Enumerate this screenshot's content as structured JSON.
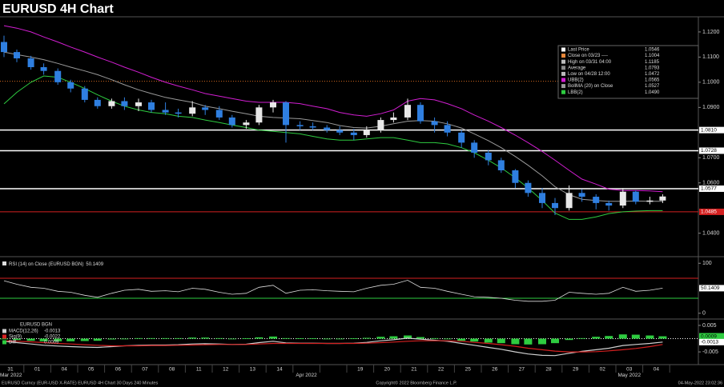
{
  "header": {
    "title": "EURUSD 4H Chart"
  },
  "chart_data": [
    {
      "type": "candlestick",
      "up_color": "#e8e8e8",
      "down_color": "#2f7fe0",
      "open": [
        1.116,
        1.112,
        1.1095,
        1.106,
        1.1045,
        1.1,
        1.0975,
        1.093,
        1.0905,
        1.0925,
        1.0905,
        1.092,
        1.089,
        1.088,
        1.0875,
        1.09,
        1.089,
        1.086,
        1.083,
        1.084,
        1.09,
        1.092,
        1.083,
        1.0825,
        1.082,
        1.081,
        1.08,
        1.079,
        1.081,
        1.085,
        1.086,
        1.091,
        1.0845,
        1.083,
        1.08,
        1.076,
        1.072,
        1.069,
        1.065,
        1.06,
        1.056,
        1.052,
        1.05,
        1.056,
        1.0545,
        1.052,
        1.051,
        1.0565,
        1.0525,
        1.053
      ],
      "high": [
        1.1185,
        1.113,
        1.1105,
        1.1075,
        1.1055,
        1.101,
        1.0985,
        1.094,
        1.0935,
        1.094,
        1.0935,
        1.093,
        1.092,
        1.0895,
        1.0925,
        1.091,
        1.0905,
        1.087,
        1.085,
        1.091,
        1.093,
        1.0925,
        1.0845,
        1.084,
        1.083,
        1.0825,
        1.0815,
        1.0825,
        1.086,
        1.088,
        1.0935,
        1.092,
        1.086,
        1.0845,
        1.081,
        1.077,
        1.073,
        1.07,
        1.0655,
        1.061,
        1.058,
        1.054,
        1.059,
        1.0575,
        1.0555,
        1.053,
        1.058,
        1.057,
        1.0545,
        1.0555
      ],
      "low": [
        1.11,
        1.108,
        1.105,
        1.103,
        1.099,
        1.096,
        1.092,
        1.0895,
        1.0895,
        1.089,
        1.0885,
        1.088,
        1.087,
        1.086,
        1.0865,
        1.087,
        1.085,
        1.082,
        1.0815,
        1.083,
        1.088,
        1.076,
        1.081,
        1.081,
        1.08,
        1.079,
        1.077,
        1.078,
        1.08,
        1.084,
        1.085,
        1.0835,
        1.08,
        1.0785,
        1.074,
        1.07,
        1.067,
        1.064,
        1.058,
        1.0545,
        1.05,
        1.0472,
        1.049,
        1.0525,
        1.0495,
        1.049,
        1.05,
        1.0515,
        1.0515,
        1.052
      ],
      "close": [
        1.112,
        1.1095,
        1.106,
        1.1045,
        1.1,
        1.0975,
        1.093,
        1.0905,
        1.0925,
        1.0905,
        1.092,
        1.089,
        1.088,
        1.0875,
        1.09,
        1.089,
        1.086,
        1.083,
        1.084,
        1.09,
        1.092,
        1.083,
        1.0825,
        1.082,
        1.081,
        1.08,
        1.079,
        1.081,
        1.085,
        1.086,
        1.091,
        1.0845,
        1.083,
        1.08,
        1.076,
        1.072,
        1.069,
        1.065,
        1.06,
        1.056,
        1.052,
        1.05,
        1.056,
        1.0545,
        1.052,
        1.051,
        1.0565,
        1.0525,
        1.053,
        1.0546
      ],
      "series": [
        {
          "color": "#d21ed2",
          "values": [
            1.1225,
            1.1215,
            1.12,
            1.118,
            1.116,
            1.114,
            1.112,
            1.11,
            1.108,
            1.106,
            1.104,
            1.102,
            1.1,
            1.0985,
            1.097,
            1.0955,
            1.0945,
            1.0935,
            1.0925,
            1.092,
            1.092,
            1.092,
            1.0915,
            1.0905,
            1.0895,
            1.088,
            1.087,
            1.0865,
            1.0875,
            1.089,
            1.0925,
            1.0935,
            1.093,
            1.0915,
            1.0895,
            1.087,
            1.0845,
            1.082,
            1.079,
            1.076,
            1.0725,
            1.069,
            1.065,
            1.0615,
            1.0595,
            1.0575,
            1.057,
            1.057,
            1.0568,
            1.0565
          ]
        },
        {
          "color": "#9a9a9a",
          "values": [
            1.112,
            1.111,
            1.11,
            1.109,
            1.1075,
            1.106,
            1.1045,
            1.103,
            1.101,
            1.099,
            1.097,
            1.0955,
            1.094,
            1.093,
            1.092,
            1.0905,
            1.0895,
            1.0885,
            1.0875,
            1.0865,
            1.086,
            1.0858,
            1.0855,
            1.0848,
            1.084,
            1.0828,
            1.082,
            1.0818,
            1.0825,
            1.0835,
            1.0845,
            1.0848,
            1.0845,
            1.0835,
            1.0818,
            1.0795,
            1.0768,
            1.074,
            1.0705,
            1.067,
            1.0628,
            1.0585,
            1.0553,
            1.0535,
            1.053,
            1.0527,
            1.0527,
            1.0528,
            1.0527,
            1.0527
          ]
        },
        {
          "color": "#2ecc40",
          "values": [
            1.0914,
            1.096,
            1.1,
            1.1025,
            1.102,
            1.1,
            1.0975,
            1.095,
            1.0925,
            1.0905,
            1.089,
            1.088,
            1.0875,
            1.0865,
            1.086,
            1.085,
            1.084,
            1.083,
            1.082,
            1.081,
            1.0805,
            1.08,
            1.0795,
            1.0785,
            1.0775,
            1.077,
            1.077,
            1.0775,
            1.078,
            1.078,
            1.077,
            1.076,
            1.076,
            1.0755,
            1.074,
            1.072,
            1.069,
            1.066,
            1.062,
            1.058,
            1.053,
            1.048,
            1.0455,
            1.0455,
            1.0465,
            1.0478,
            1.0485,
            1.0488,
            1.049,
            1.049
          ]
        }
      ],
      "ylim": [
        1.031,
        1.1257
      ],
      "yticks": [
        {
          "value": 1.12,
          "label": "1.1200"
        },
        {
          "value": 1.11,
          "label": "1.1100"
        },
        {
          "value": 1.1,
          "label": "1.1000"
        },
        {
          "value": 1.09,
          "label": "1.0900"
        },
        {
          "value": 1.07,
          "label": "1.0700"
        },
        {
          "value": 1.06,
          "label": "1.0600"
        },
        {
          "value": 1.04,
          "label": "1.0400"
        }
      ],
      "levels": [
        {
          "value": 1.081,
          "label": "1.0810",
          "color": "#ffffff"
        },
        {
          "value": 1.0728,
          "label": "1.0728",
          "color": "#ffffff"
        },
        {
          "value": 1.0577,
          "label": "1.0577",
          "color": "#ffffff"
        },
        {
          "value": 1.0485,
          "label": "1.0485",
          "color": "#d42020"
        }
      ],
      "close_line": {
        "value": 1.1004,
        "color": "#d2691e"
      },
      "legend": [
        {
          "label": "Last Price",
          "value": "1.0546",
          "color": "#ffffff"
        },
        {
          "label": "Close on 03/23 ----",
          "value": "1.1004",
          "color": "#e8883a"
        },
        {
          "label": "High on 03/31 04:00",
          "value": "1.1185",
          "color": "#bbbbbb"
        },
        {
          "label": "Average",
          "value": "1.0793",
          "color": "#888888"
        },
        {
          "label": "Low on 04/28 12:00",
          "value": "1.0472",
          "color": "#bbbbbb"
        },
        {
          "label": "UBB(2)",
          "value": "1.0565",
          "color": "#d21ed2"
        },
        {
          "label": "BollMA (20)  on Close",
          "value": "1.0527",
          "color": "#9a9a9a"
        },
        {
          "label": "LBB(2)",
          "value": "1.0490",
          "color": "#2ecc40"
        }
      ]
    },
    {
      "type": "line",
      "title": "RSI (14)  on Close (EURUSD BGN)",
      "series": [
        {
          "color": "#dddddd",
          "values": [
            65,
            58,
            52,
            50,
            44,
            42,
            36,
            32,
            40,
            46,
            48,
            44,
            45,
            43,
            50,
            48,
            42,
            38,
            40,
            52,
            56,
            40,
            46,
            47,
            45,
            44,
            43,
            50,
            56,
            58,
            66,
            52,
            50,
            44,
            38,
            33,
            32,
            30,
            26,
            24,
            24,
            26,
            42,
            40,
            38,
            40,
            52,
            44,
            46,
            50.1409
          ]
        }
      ],
      "ylim": [
        -10,
        111.6
      ],
      "yticks": [
        0,
        100
      ],
      "levels": [
        {
          "value": 70,
          "color": "#d42020"
        },
        {
          "value": 30,
          "color": "#2ecc40"
        }
      ]
    },
    {
      "type": "macd",
      "subtitle": "EURUSD BGN",
      "series": [
        {
          "name": "MACD(12,26)",
          "color": "#d0d0d0",
          "values": [
            -0.001,
            -0.0015,
            -0.002,
            -0.0025,
            -0.0028,
            -0.003,
            -0.0032,
            -0.0033,
            -0.003,
            -0.0027,
            -0.0025,
            -0.0024,
            -0.0024,
            -0.0023,
            -0.002,
            -0.0019,
            -0.002,
            -0.0022,
            -0.0021,
            -0.0015,
            -0.001,
            -0.0016,
            -0.0017,
            -0.0017,
            -0.0018,
            -0.0018,
            -0.0017,
            -0.0014,
            -0.0008,
            -0.0004,
            0.0002,
            -0.0002,
            -0.0006,
            -0.001,
            -0.0018,
            -0.0025,
            -0.0033,
            -0.004,
            -0.005,
            -0.0058,
            -0.0063,
            -0.0064,
            -0.0055,
            -0.0048,
            -0.0042,
            -0.0036,
            -0.0026,
            -0.0022,
            -0.0018,
            -0.0013
          ]
        },
        {
          "name": "Sig(9)",
          "color": "#d42020",
          "values": [
            -0.0008,
            -0.001,
            -0.0012,
            -0.0015,
            -0.0018,
            -0.002,
            -0.0023,
            -0.0025,
            -0.0027,
            -0.0027,
            -0.0027,
            -0.0026,
            -0.0026,
            -0.0025,
            -0.0024,
            -0.0023,
            -0.0022,
            -0.0022,
            -0.0022,
            -0.002,
            -0.0018,
            -0.0018,
            -0.0018,
            -0.0018,
            -0.0018,
            -0.0018,
            -0.0018,
            -0.0017,
            -0.0015,
            -0.0013,
            -0.001,
            -0.0008,
            -0.0008,
            -0.0008,
            -0.001,
            -0.0014,
            -0.0018,
            -0.0023,
            -0.0029,
            -0.0036,
            -0.0042,
            -0.0047,
            -0.005,
            -0.005,
            -0.0049,
            -0.0046,
            -0.0042,
            -0.0037,
            -0.003,
            -0.0022
          ]
        }
      ],
      "diff": {
        "name": "Diff",
        "color": "#2ecc40",
        "values": [
          -0.0002,
          -0.0005,
          -0.0008,
          -0.001,
          -0.001,
          -0.001,
          -0.0009,
          -0.0008,
          -0.0003,
          0.0,
          0.0002,
          0.0002,
          0.0002,
          0.0002,
          0.0004,
          0.0004,
          0.0002,
          0.0,
          0.0001,
          0.0005,
          0.0008,
          0.0002,
          0.0001,
          0.0001,
          0.0,
          0.0,
          0.0001,
          0.0003,
          0.0007,
          0.0009,
          0.0012,
          0.0006,
          0.0002,
          -0.0002,
          -0.0008,
          -0.0011,
          -0.0015,
          -0.0017,
          -0.0021,
          -0.0022,
          -0.0021,
          -0.0017,
          -0.0005,
          0.0002,
          0.0007,
          0.001,
          0.0016,
          0.0015,
          0.0012,
          0.0009
        ]
      },
      "ylim": [
        -0.0098,
        0.0071
      ],
      "yticks": [
        0.005,
        -0.005
      ]
    }
  ],
  "x_axis": {
    "categories": [
      "31",
      "01",
      "04",
      "05",
      "06",
      "07",
      "08",
      "11",
      "12",
      "13",
      "14",
      null,
      null,
      "19",
      "20",
      "21",
      "22",
      "25",
      "26",
      "27",
      "28",
      "29",
      "02",
      "03",
      "04"
    ],
    "months": [
      "Mar 2022",
      "Apr 2022",
      "May 2022"
    ]
  },
  "footer": {
    "left": "EURUSD Curncy (EUR-USD X-RATE) EURUSD 4H Chart 30 Days 240 Minutes",
    "center": "Copyright© 2022 Bloomberg Finance L.P.",
    "right": "04-May-2022 23:02:36"
  }
}
